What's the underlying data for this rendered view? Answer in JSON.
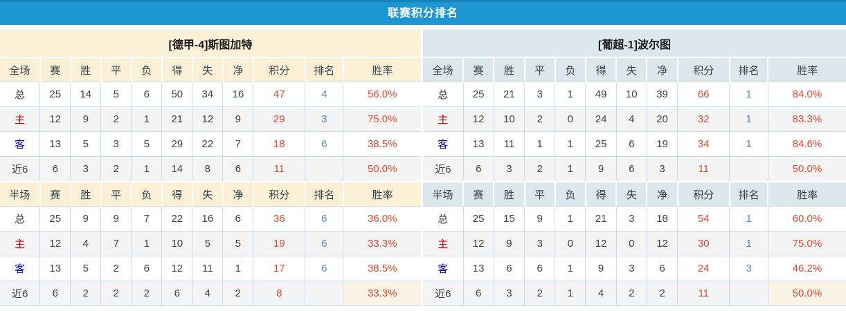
{
  "title_bar": {
    "title": "联赛积分排名"
  },
  "colors": {
    "title_bg": "#1E96D4",
    "title_top_edge": "#1580B8",
    "left_header_bg": "#FBEFD6",
    "right_header_bg": "#DCE6ED",
    "cell_border": "#C9DCE9",
    "alt_row_bg": "#F4F4F4",
    "points_red": "#E1472B",
    "rank_blue": "#4C88C8",
    "home_label_red": "#C80000",
    "away_label_blue": "#0000C8",
    "text_dark": "#404040"
  },
  "columns": {
    "full": [
      "全场",
      "赛",
      "胜",
      "平",
      "负",
      "得",
      "失",
      "净",
      "积分",
      "排名",
      "胜率"
    ],
    "half": [
      "半场",
      "赛",
      "胜",
      "平",
      "负",
      "得",
      "失",
      "净",
      "积分",
      "排名",
      "胜率"
    ]
  },
  "teams": [
    {
      "name": "[德甲-4]斯图加特",
      "sections": {
        "full": {
          "rows": [
            {
              "label": "总",
              "type": "total",
              "stats": [
                "25",
                "14",
                "5",
                "6",
                "50",
                "34",
                "16"
              ],
              "points": "47",
              "rank": "4",
              "win_rate": "56.0%"
            },
            {
              "label": "主",
              "type": "home",
              "stats": [
                "12",
                "9",
                "2",
                "1",
                "21",
                "12",
                "9"
              ],
              "points": "29",
              "rank": "3",
              "win_rate": "75.0%"
            },
            {
              "label": "客",
              "type": "away",
              "stats": [
                "13",
                "5",
                "3",
                "5",
                "29",
                "22",
                "7"
              ],
              "points": "18",
              "rank": "6",
              "win_rate": "38.5%"
            },
            {
              "label": "近6",
              "type": "recent6",
              "stats": [
                "6",
                "3",
                "2",
                "1",
                "14",
                "8",
                "6"
              ],
              "points": "11",
              "rank": "",
              "win_rate": "50.0%"
            }
          ]
        },
        "half": {
          "rows": [
            {
              "label": "总",
              "type": "total",
              "stats": [
                "25",
                "9",
                "9",
                "7",
                "22",
                "16",
                "6"
              ],
              "points": "36",
              "rank": "6",
              "win_rate": "36.0%"
            },
            {
              "label": "主",
              "type": "home",
              "stats": [
                "12",
                "4",
                "7",
                "1",
                "10",
                "5",
                "5"
              ],
              "points": "19",
              "rank": "6",
              "win_rate": "33.3%"
            },
            {
              "label": "客",
              "type": "away",
              "stats": [
                "13",
                "5",
                "2",
                "6",
                "12",
                "11",
                "1"
              ],
              "points": "17",
              "rank": "6",
              "win_rate": "38.5%"
            },
            {
              "label": "近6",
              "type": "recent6",
              "stats": [
                "6",
                "2",
                "2",
                "2",
                "6",
                "4",
                "2"
              ],
              "points": "8",
              "rank": "",
              "win_rate": "33.3%"
            }
          ]
        }
      }
    },
    {
      "name": "[葡超-1]波尔图",
      "sections": {
        "full": {
          "rows": [
            {
              "label": "总",
              "type": "total",
              "stats": [
                "25",
                "21",
                "3",
                "1",
                "49",
                "10",
                "39"
              ],
              "points": "66",
              "rank": "1",
              "win_rate": "84.0%"
            },
            {
              "label": "主",
              "type": "home",
              "stats": [
                "12",
                "10",
                "2",
                "0",
                "24",
                "4",
                "20"
              ],
              "points": "32",
              "rank": "1",
              "win_rate": "83.3%"
            },
            {
              "label": "客",
              "type": "away",
              "stats": [
                "13",
                "11",
                "1",
                "1",
                "25",
                "6",
                "19"
              ],
              "points": "34",
              "rank": "1",
              "win_rate": "84.6%"
            },
            {
              "label": "近6",
              "type": "recent6",
              "stats": [
                "6",
                "3",
                "2",
                "1",
                "9",
                "6",
                "3"
              ],
              "points": "11",
              "rank": "",
              "win_rate": "50.0%"
            }
          ]
        },
        "half": {
          "rows": [
            {
              "label": "总",
              "type": "total",
              "stats": [
                "25",
                "15",
                "9",
                "1",
                "21",
                "3",
                "18"
              ],
              "points": "54",
              "rank": "1",
              "win_rate": "60.0%"
            },
            {
              "label": "主",
              "type": "home",
              "stats": [
                "12",
                "9",
                "3",
                "0",
                "12",
                "0",
                "12"
              ],
              "points": "30",
              "rank": "1",
              "win_rate": "75.0%"
            },
            {
              "label": "客",
              "type": "away",
              "stats": [
                "13",
                "6",
                "6",
                "1",
                "9",
                "3",
                "6"
              ],
              "points": "24",
              "rank": "3",
              "win_rate": "46.2%"
            },
            {
              "label": "近6",
              "type": "recent6",
              "stats": [
                "6",
                "3",
                "2",
                "1",
                "4",
                "2",
                "2"
              ],
              "points": "11",
              "rank": "",
              "win_rate": "50.0%"
            }
          ]
        }
      }
    }
  ]
}
